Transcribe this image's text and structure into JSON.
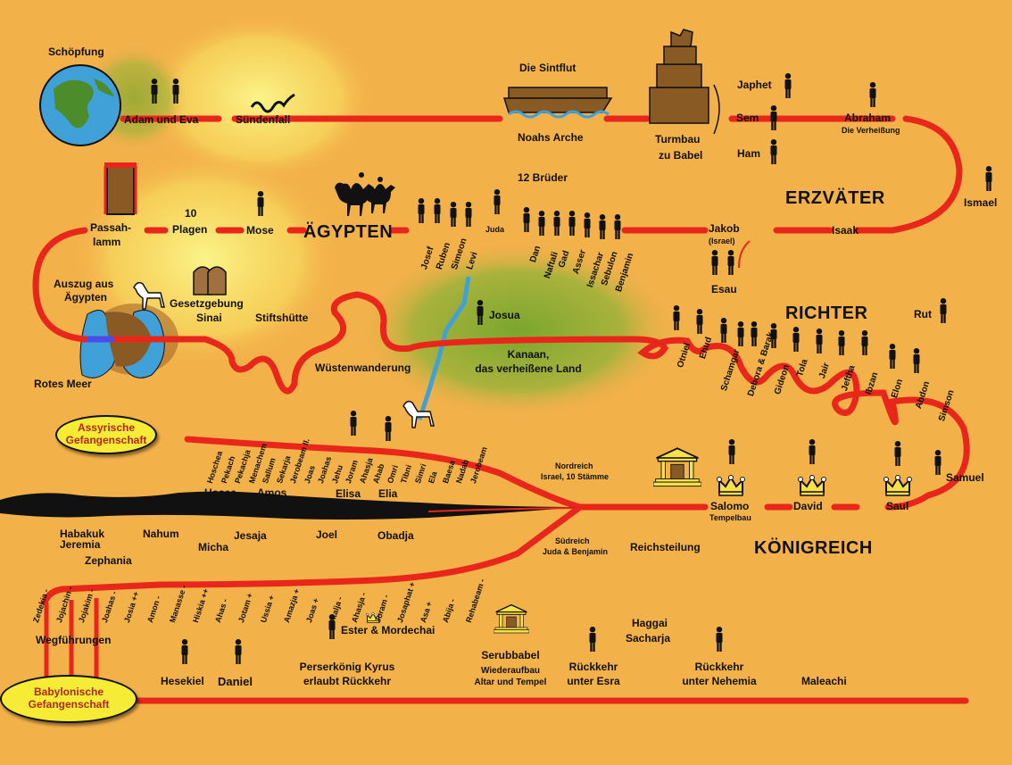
{
  "top": {
    "schoepfung": "Schöpfung",
    "adam_eva": "Adam und Eva",
    "suendenfall": "Sündenfall",
    "sintflut": "Die Sintflut",
    "noahs_arche": "Noahs Arche",
    "turmbau": "Turmbau",
    "zu_babel": "zu Babel",
    "japhet": "Japhet",
    "sem": "Sem",
    "ham": "Ham",
    "abraham": "Abraham",
    "verheissung": "Die Verheißung",
    "ismael": "Ismael",
    "erzvaeter": "ERZVÄTER",
    "isaak": "Isaak",
    "jakob": "Jakob",
    "israel": "(Israel)",
    "esau": "Esau",
    "zwoelf_brueder": "12 Brüder",
    "aegypten": "ÄGYPTEN",
    "mose": "Mose",
    "plagen_10": "10",
    "plagen": "Plagen",
    "passah_1": "Passah-",
    "passah_2": "lamm",
    "brothers": [
      "Josef",
      "Ruben",
      "Simeon",
      "Levi",
      "Juda",
      "Dan",
      "Naftali",
      "Gad",
      "Asser",
      "Issachar",
      "Sebulon",
      "Benjamin"
    ]
  },
  "middle": {
    "auszug_1": "Auszug aus",
    "auszug_2": "Ägypten",
    "gesetzgebung": "Gesetzgebung",
    "sinai": "Sinai",
    "stiftshuette": "Stiftshütte",
    "rotes_meer": "Rotes Meer",
    "wuestenwanderung": "Wüstenwanderung",
    "josua": "Josua",
    "kanaan_1": "Kanaan,",
    "kanaan_2": "das verheißene Land",
    "richter": "RICHTER",
    "rut": "Rut",
    "judges": [
      "Otniel",
      "Ehud",
      "Schamgar",
      "Debora & Barak",
      "Gideon",
      "Tola",
      "Jair",
      "Jeftha",
      "Ibzan",
      "Elon",
      "Abdon",
      "Simson"
    ]
  },
  "kingdom": {
    "assyr_1": "Assyrische",
    "assyr_2": "Gefangenschaft",
    "samuel": "Samuel",
    "saul": "Saul",
    "david": "David",
    "salomo": "Salomo",
    "tempelbau": "Tempelbau",
    "nordreich_1": "Nordreich",
    "nordreich_2": "Israel, 10 Stämme",
    "suedreich_1": "Südreich",
    "suedreich_2": "Juda & Benjamin",
    "reichsteilung": "Reichsteilung",
    "koenigreich": "KÖNIGREICH",
    "north_kings": [
      "Hoschea",
      "Pekach",
      "Pekachja",
      "Menachem",
      "Sallum",
      "Sekarja",
      "Jerobeam II.",
      "Joas",
      "Joahas",
      "Jehu",
      "Joram",
      "Ahasja",
      "Ahab",
      "Omri",
      "Tibni",
      "Simri",
      "Ela",
      "Baesa",
      "Nadab",
      "Jerobeam"
    ],
    "north_prophets": [
      "Hosea",
      "Amos",
      "Elisa",
      "Elia"
    ],
    "south_kings": [
      "Zedekia -",
      "Jojachin -",
      "Jojakim -",
      "Joahas -",
      "Josia ++",
      "Amon -",
      "Manasse -",
      "Hiskia ++",
      "Ahas -",
      "Jotam +",
      "Ussia +",
      "Amazja +",
      "Joas +",
      "Atalja -",
      "Ahasja -",
      "Joram -",
      "Josaphat +",
      "Asa +",
      "Abija -",
      "Rehabeam -"
    ],
    "south_prophets": [
      "Habakuk",
      "Jeremia",
      "Zephania",
      "Nahum",
      "Micha",
      "Jesaja",
      "Joel",
      "Obadja"
    ]
  },
  "bottom": {
    "wegfuehrungen": "Wegführungen",
    "babyl_1": "Babylonische",
    "babyl_2": "Gefangenschaft",
    "hesekiel": "Hesekiel",
    "daniel": "Daniel",
    "ester": "Ester & Mordechai",
    "kyrus_1": "Perserkönig Kyrus",
    "kyrus_2": "erlaubt Rückkehr",
    "serubbabel": "Serubbabel",
    "wiederaufbau_1": "Wiederaufbau",
    "wiederaufbau_2": "Altar und Tempel",
    "haggai": "Haggai",
    "sacharja": "Sacharja",
    "esra_1": "Rückkehr",
    "esra_2": "unter Esra",
    "nehemia_1": "Rückkehr",
    "nehemia_2": "unter Nehemia",
    "maleachi": "Maleachi"
  },
  "colors": {
    "background": "#f3b14a",
    "timeline": "#e8261b",
    "bubble": "#f7ec35",
    "heading": "#111111"
  }
}
